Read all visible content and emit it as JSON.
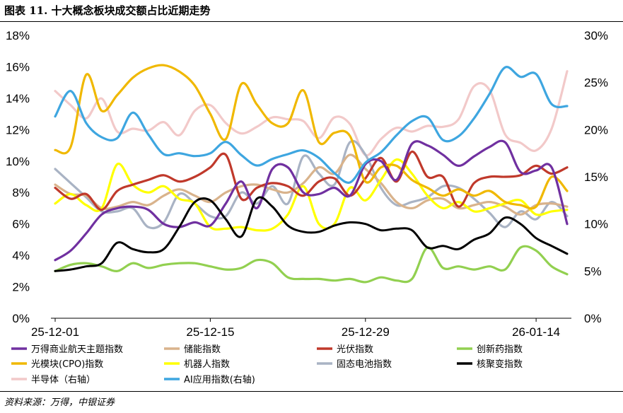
{
  "title": "图表 11. 十大概念板块成交额占比近期走势",
  "source": "资料来源：万得，中银证券",
  "chart_data": {
    "type": "line",
    "left_axis": {
      "ticks": [
        "0%",
        "2%",
        "4%",
        "6%",
        "8%",
        "10%",
        "12%",
        "14%",
        "16%",
        "18%"
      ],
      "range": [
        0,
        18
      ]
    },
    "right_axis": {
      "ticks": [
        "0%",
        "5%",
        "10%",
        "15%",
        "20%",
        "25%",
        "30%"
      ],
      "range": [
        0,
        30
      ]
    },
    "x_ticks": [
      "25-12-01",
      "25-12-15",
      "25-12-29",
      "26-01-14"
    ],
    "x_tick_indices": [
      0,
      10,
      20,
      31
    ],
    "n_points": 34,
    "series": [
      {
        "name": "万得商业航天主题指数",
        "color": "#7030a0",
        "axis": "left",
        "values": [
          3.7,
          4.3,
          5.4,
          6.6,
          7.0,
          7.1,
          6.9,
          6.0,
          5.8,
          6.1,
          5.9,
          7.3,
          8.7,
          7.0,
          9.5,
          9.6,
          8.0,
          7.9,
          8.3,
          7.8,
          9.8,
          10.0,
          8.8,
          11.1,
          11.0,
          10.4,
          9.7,
          10.3,
          10.9,
          11.2,
          9.3,
          9.4,
          9.6,
          6.0
        ]
      },
      {
        "name": "储能指数",
        "color": "#d9b38c",
        "axis": "left",
        "values": [
          8.5,
          7.9,
          7.8,
          7.0,
          7.1,
          7.4,
          7.2,
          7.8,
          8.2,
          7.8,
          7.4,
          8.0,
          8.4,
          8.5,
          8.2,
          8.0,
          8.6,
          9.6,
          9.2,
          10.4,
          9.5,
          8.6,
          7.4,
          7.0,
          7.5,
          7.6,
          7.0,
          7.2,
          7.4,
          7.1,
          6.6,
          7.2,
          7.3,
          7.1
        ]
      },
      {
        "name": "光伏指数",
        "color": "#c0392b",
        "axis": "left",
        "values": [
          8.3,
          7.6,
          7.9,
          6.9,
          8.1,
          8.5,
          8.8,
          9.1,
          8.7,
          9.0,
          9.6,
          10.4,
          7.6,
          8.3,
          8.6,
          8.4,
          7.8,
          8.7,
          8.9,
          7.8,
          8.9,
          10.2,
          8.7,
          10.6,
          9.0,
          9.0,
          7.1,
          8.6,
          9.0,
          9.0,
          9.1,
          9.7,
          9.2,
          9.6
        ]
      },
      {
        "name": "创新药指数",
        "color": "#92d050",
        "axis": "left",
        "values": [
          3.0,
          3.4,
          3.5,
          3.3,
          3.0,
          3.5,
          3.2,
          3.4,
          3.5,
          3.5,
          3.3,
          3.1,
          3.2,
          3.7,
          3.5,
          2.6,
          2.5,
          2.5,
          2.4,
          2.5,
          2.3,
          2.6,
          2.4,
          2.5,
          4.5,
          3.2,
          3.3,
          3.1,
          3.3,
          3.1,
          4.5,
          4.3,
          3.3,
          2.8
        ]
      },
      {
        "name": "光模块(CPO)指数",
        "color": "#f0b800",
        "axis": "left",
        "values": [
          10.7,
          10.9,
          15.5,
          13.2,
          14.2,
          15.3,
          15.9,
          16.1,
          15.7,
          14.8,
          13.0,
          11.4,
          14.9,
          13.6,
          12.4,
          12.4,
          14.5,
          11.2,
          11.8,
          11.6,
          8.7,
          9.6,
          9.7,
          8.8,
          8.3,
          7.8,
          8.2,
          7.8,
          8.1,
          7.4,
          7.2,
          7.1,
          9.0,
          8.1
        ]
      },
      {
        "name": "机器人指数",
        "color": "#ffff00",
        "axis": "left",
        "values": [
          7.3,
          7.9,
          7.2,
          7.0,
          9.8,
          8.5,
          8.0,
          8.4,
          7.6,
          7.3,
          5.8,
          5.7,
          5.8,
          5.6,
          5.7,
          6.6,
          8.4,
          6.0,
          6.0,
          8.3,
          7.5,
          8.8,
          10.1,
          9.2,
          7.8,
          7.0,
          7.4,
          6.8,
          7.0,
          7.3,
          7.5,
          6.6,
          6.8,
          6.9
        ]
      },
      {
        "name": "固态电池指数",
        "color": "#a9b3c4",
        "axis": "left",
        "values": [
          9.5,
          8.6,
          7.7,
          6.8,
          6.8,
          7.0,
          5.8,
          6.1,
          7.9,
          7.3,
          6.5,
          6.5,
          8.0,
          7.3,
          8.4,
          7.3,
          10.3,
          9.2,
          8.5,
          11.2,
          10.4,
          8.3,
          7.2,
          7.4,
          7.7,
          8.4,
          8.3,
          7.6,
          6.7,
          5.8,
          6.8,
          6.3,
          7.4,
          6.5
        ]
      },
      {
        "name": "核聚变指数",
        "color": "#000000",
        "axis": "left",
        "values": [
          3.0,
          3.1,
          3.3,
          3.5,
          4.8,
          4.4,
          4.2,
          4.4,
          5.8,
          7.4,
          7.5,
          6.3,
          5.2,
          7.6,
          7.1,
          5.9,
          5.5,
          5.5,
          5.9,
          6.1,
          6.0,
          5.6,
          5.7,
          5.6,
          4.5,
          4.6,
          4.4,
          5.0,
          5.4,
          6.4,
          6.0,
          5.1,
          4.6,
          4.1
        ]
      },
      {
        "name": "半导体（右轴）",
        "color": "#f2c9c9",
        "axis": "right",
        "values": [
          24.1,
          22.6,
          21.2,
          23.3,
          19.8,
          20.1,
          19.9,
          20.8,
          19.4,
          22.0,
          22.6,
          20.7,
          19.6,
          20.3,
          21.3,
          21.1,
          20.9,
          19.1,
          21.3,
          20.6,
          17.3,
          19.0,
          20.2,
          19.8,
          20.4,
          20.3,
          21.1,
          24.6,
          24.2,
          19.5,
          18.6,
          17.8,
          20.1,
          26.2
        ]
      },
      {
        "name": "AI应用指数(右轴)",
        "color": "#3ea6e0",
        "axis": "right",
        "values": [
          21.4,
          24.1,
          20.7,
          19.2,
          19.1,
          21.8,
          19.5,
          17.4,
          17.5,
          17.2,
          17.5,
          18.7,
          17.3,
          16.2,
          16.9,
          17.4,
          17.8,
          17.0,
          15.4,
          14.4,
          16.5,
          17.6,
          19.4,
          20.9,
          21.3,
          18.9,
          19.3,
          21.2,
          23.8,
          26.6,
          25.6,
          25.9,
          22.7,
          22.5
        ]
      }
    ]
  }
}
